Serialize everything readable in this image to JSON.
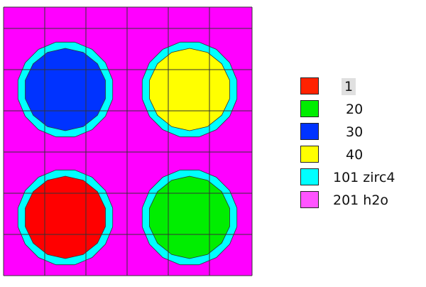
{
  "colors": {
    "background": "#ff00ff",
    "grid_line": "#333333",
    "clad": "#00ffff",
    "cell_outline": "#000000"
  },
  "pins": [
    {
      "material": "30",
      "fill": "#0033ff"
    },
    {
      "material": "40",
      "fill": "#ffff00"
    },
    {
      "material": "1",
      "fill": "#ff0000"
    },
    {
      "material": "20",
      "fill": "#00ee00"
    }
  ],
  "legend": [
    {
      "label": "1",
      "color": "#ff2200"
    },
    {
      "label": "20",
      "color": "#00ee00"
    },
    {
      "label": "30",
      "color": "#0033ff"
    },
    {
      "label": "40",
      "color": "#ffff00"
    },
    {
      "label": "101 zirc4",
      "color": "#00ffff"
    },
    {
      "label": "201 h2o",
      "color": "#ff55ff"
    }
  ]
}
